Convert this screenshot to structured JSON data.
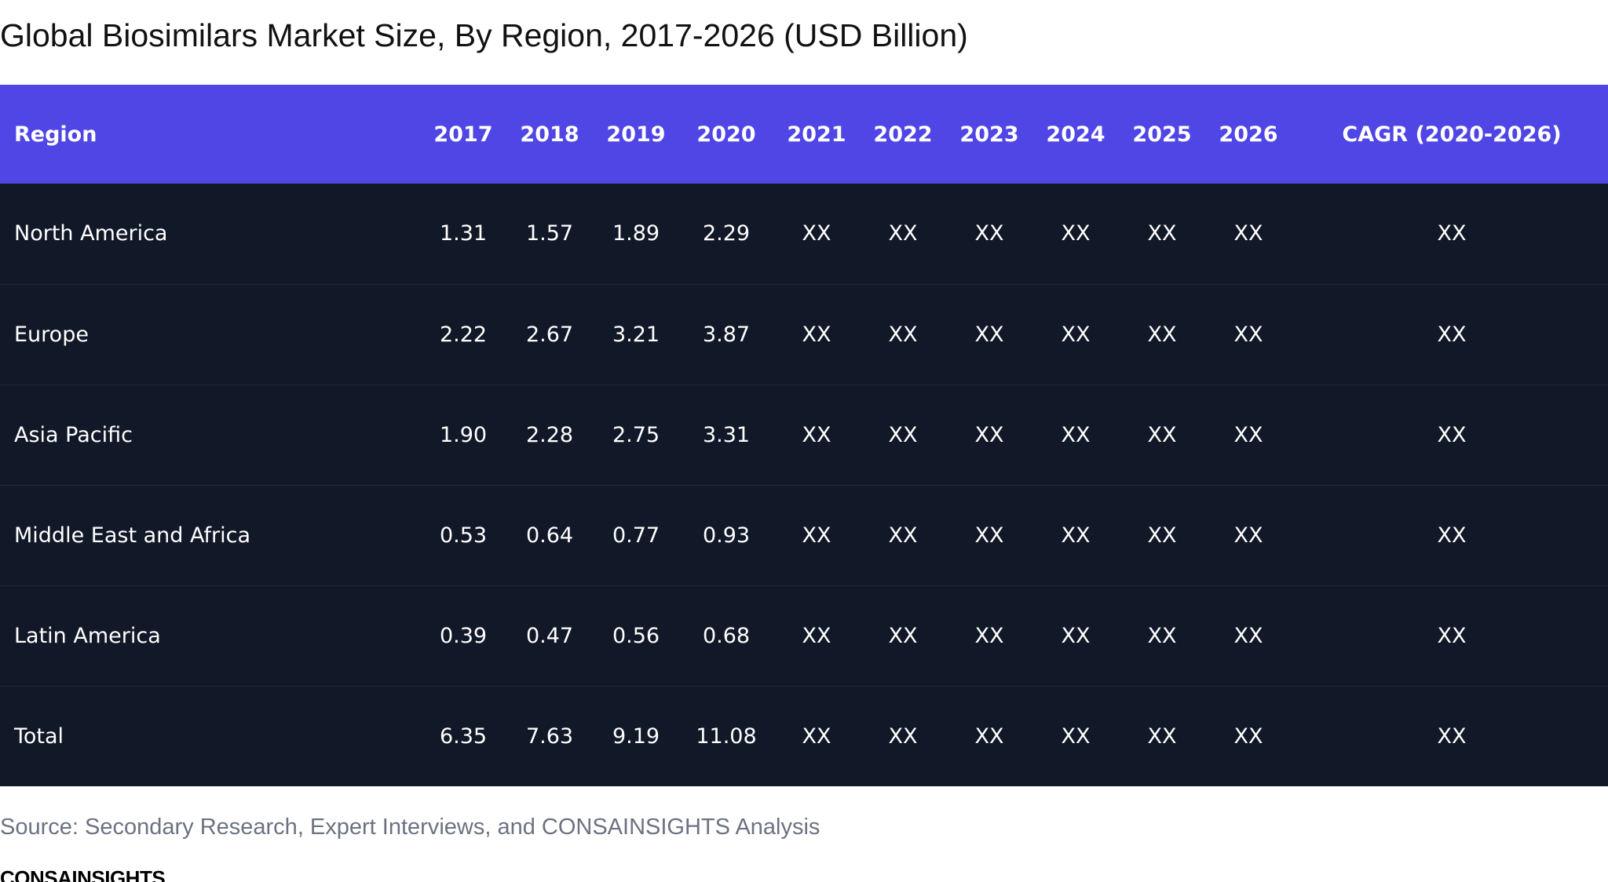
{
  "title": "Global Biosimilars Market Size, By Region, 2017-2026 (USD Billion)",
  "source": "Source: Secondary Research, Expert Interviews, and CONSAINSIGHTS Analysis",
  "brand": "CONSAINSIGHTS",
  "colors": {
    "header_bg": "#4f46e5",
    "body_bg": "#111827",
    "row_divider": "#1f2a3d",
    "text_light": "#ffffff",
    "source_text": "#6b7280"
  },
  "chart_data": {
    "type": "table",
    "title": "Global Biosimilars Market Size, By Region, 2017-2026 (USD Billion)",
    "columns": [
      "Region",
      "2017",
      "2018",
      "2019",
      "2020",
      "2021",
      "2022",
      "2023",
      "2024",
      "2025",
      "2026",
      "CAGR (2020-2026)"
    ],
    "rows": [
      [
        "North America",
        "1.31",
        "1.57",
        "1.89",
        "2.29",
        "XX",
        "XX",
        "XX",
        "XX",
        "XX",
        "XX",
        "XX"
      ],
      [
        "Europe",
        "2.22",
        "2.67",
        "3.21",
        "3.87",
        "XX",
        "XX",
        "XX",
        "XX",
        "XX",
        "XX",
        "XX"
      ],
      [
        "Asia Pacific",
        "1.90",
        "2.28",
        "2.75",
        "3.31",
        "XX",
        "XX",
        "XX",
        "XX",
        "XX",
        "XX",
        "XX"
      ],
      [
        "Middle East and Africa",
        "0.53",
        "0.64",
        "0.77",
        "0.93",
        "XX",
        "XX",
        "XX",
        "XX",
        "XX",
        "XX",
        "XX"
      ],
      [
        "Latin America",
        "0.39",
        "0.47",
        "0.56",
        "0.68",
        "XX",
        "XX",
        "XX",
        "XX",
        "XX",
        "XX",
        "XX"
      ],
      [
        "Total",
        "6.35",
        "7.63",
        "9.19",
        "11.08",
        "XX",
        "XX",
        "XX",
        "XX",
        "XX",
        "XX",
        "XX"
      ]
    ]
  }
}
